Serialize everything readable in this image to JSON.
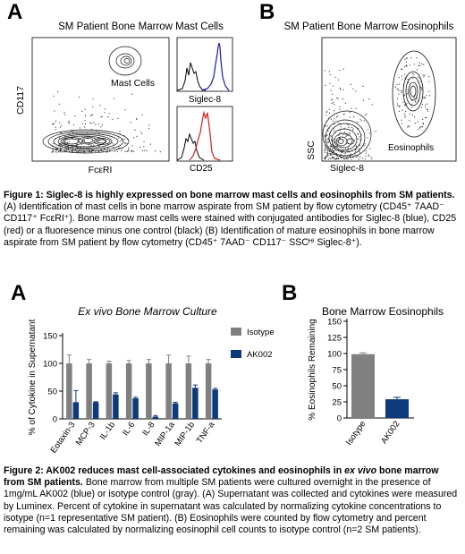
{
  "fig1": {
    "panel_a": {
      "letter": "A",
      "title": "SM Patient Bone Marrow Mast Cells",
      "ylabel": "CD117",
      "xlabel": "FcεRI",
      "gate_label": "Mast Cells",
      "hist_top_xlabel": "Siglec-8",
      "hist_bottom_xlabel": "CD25",
      "colors": {
        "siglec8": "#1a1aa8",
        "cd25": "#d42020",
        "fmo": "#000000"
      }
    },
    "panel_b": {
      "letter": "B",
      "title": "SM Patient Bone Marrow Eosinophils",
      "ylabel": "SSC",
      "xlabel": "Siglec-8",
      "gate_label": "Eosinophils"
    },
    "caption": {
      "bold": "Figure 1: Siglec-8 is highly expressed on bone marrow mast cells and eosinophils from SM patients.",
      "text": " (A) Identification of mast cells in bone marrow aspirate from SM patient by flow cytometry (CD45⁺ 7AAD⁻ CD117⁺ FcεRI⁺). Bone marrow mast cells were stained with conjugated antibodies for Siglec-8 (blue), CD25 (red) or a fluoresence minus one control (black) (B) Identification of mature eosinophils in bone marrow aspirate from SM patient by flow cytometry (CD45⁺ 7AAD⁻ CD117⁻ SSCᴴⁱ Siglec-8⁺)."
    }
  },
  "fig2": {
    "panel_a_letter": "A",
    "panel_b_letter": "B",
    "caption": {
      "bold1": "Figure 2: AK002 reduces mast cell-associated cytokines and eosinophils in ",
      "italic": "ex vivo",
      "bold2": " bone marrow from SM patients.",
      "text": " Bone marrow from multiple SM patients were cultured overnight in the presence of 1mg/mL AK002 (blue) or isotype control (gray). (A) Supernatant was collected and cytokines were measured by Luminex.  Percent of cytokine in supernatant was calculated by normalizing cytokine concentrations to isotype (n=1 representative SM patient). (B) Eosinophils were counted by flow cytometry and percent remaining was calculated by normalizing eosinophil cell counts to isotype control (n=2 SM patients)."
    }
  },
  "chart_data": [
    {
      "type": "bar",
      "title": "Ex vivo Bone Marrow Culture",
      "ylabel": "% of Cytokine in Supernatant",
      "xlabel": "",
      "ylim": [
        0,
        150
      ],
      "yticks": [
        "0",
        "50",
        "100",
        "150"
      ],
      "categories": [
        "Eotaxin-3",
        "MCP-3",
        "IL-1b",
        "IL-6",
        "IL-8",
        "MIP-1a",
        "MIP-1b",
        "TNF-a"
      ],
      "legend_placement": "right",
      "series": [
        {
          "name": "Isotype",
          "color": "#808080",
          "values": [
            100,
            100,
            100,
            100,
            100,
            100,
            100,
            100
          ],
          "errors": [
            15,
            7,
            4,
            5,
            7,
            15,
            13,
            7
          ]
        },
        {
          "name": "AK002",
          "color": "#0c3a7a",
          "values": [
            30,
            30,
            44,
            37,
            4,
            28,
            56,
            53
          ],
          "errors": [
            21,
            1,
            3,
            2,
            2,
            2,
            5,
            2
          ]
        }
      ]
    },
    {
      "type": "bar",
      "title": "Bone Marrow Eosinophils",
      "ylabel": "% Eosinophils Remaining",
      "xlabel": "",
      "ylim": [
        0,
        150
      ],
      "yticks": [
        "0",
        "25",
        "50",
        "75",
        "100",
        "125",
        "150"
      ],
      "categories": [
        "Isotype",
        "AK002"
      ],
      "colors": [
        "#808080",
        "#0c3a7a"
      ],
      "values": [
        99,
        29
      ],
      "errors": [
        2,
        3
      ]
    }
  ]
}
